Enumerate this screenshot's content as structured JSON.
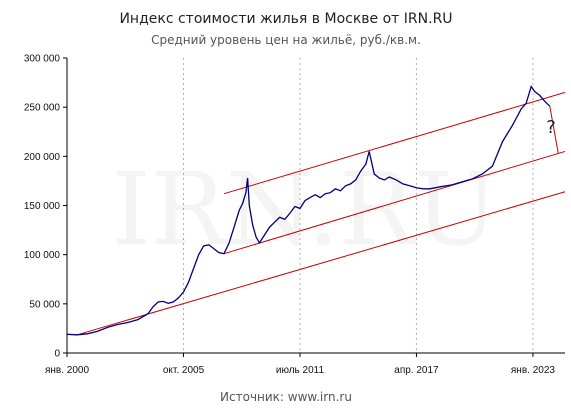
{
  "chart_data": {
    "type": "line",
    "title": "Индекс стоимости жилья в Москве от IRN.RU",
    "subtitle": "Средний уровень цен на жильё, руб./кв.м.",
    "source": "Источник: www.irn.ru",
    "watermark": "IRN.RU",
    "annotation": "?",
    "xlim": [
      "2000-01",
      "2024-08"
    ],
    "ylim": [
      0,
      300000
    ],
    "yticks": [
      0,
      50000,
      100000,
      150000,
      200000,
      250000,
      300000
    ],
    "ytick_labels": [
      "0",
      "50 000",
      "100 000",
      "150 000",
      "200 000",
      "250 000",
      "300 000"
    ],
    "xticks": [
      "2000-01",
      "2005-10",
      "2011-07",
      "2017-04",
      "2023-01"
    ],
    "xtick_labels": [
      "янв. 2000",
      "окт. 2005",
      "июль 2011",
      "апр. 2017",
      "янв. 2023"
    ],
    "grid": {
      "vertical": true,
      "horizontal": false,
      "style": "dashed"
    },
    "colors": {
      "series": "#000080",
      "channel": "#cc0000"
    },
    "series": [
      {
        "color": "#000080",
        "points": [
          [
            "2000-01",
            19000
          ],
          [
            "2000-07",
            18500
          ],
          [
            "2001-01",
            19500
          ],
          [
            "2001-07",
            22000
          ],
          [
            "2002-01",
            26000
          ],
          [
            "2002-07",
            29000
          ],
          [
            "2003-01",
            31000
          ],
          [
            "2003-07",
            34000
          ],
          [
            "2004-01",
            40000
          ],
          [
            "2004-04",
            47000
          ],
          [
            "2004-07",
            52000
          ],
          [
            "2004-10",
            52500
          ],
          [
            "2005-01",
            50500
          ],
          [
            "2005-04",
            52000
          ],
          [
            "2005-07",
            56000
          ],
          [
            "2005-10",
            62000
          ],
          [
            "2006-01",
            72000
          ],
          [
            "2006-04",
            86000
          ],
          [
            "2006-07",
            100000
          ],
          [
            "2006-10",
            109000
          ],
          [
            "2007-01",
            110000
          ],
          [
            "2007-04",
            106000
          ],
          [
            "2007-07",
            102000
          ],
          [
            "2007-10",
            101000
          ],
          [
            "2008-01",
            112000
          ],
          [
            "2008-04",
            128000
          ],
          [
            "2008-07",
            145000
          ],
          [
            "2008-09",
            152000
          ],
          [
            "2008-11",
            163000
          ],
          [
            "2008-12",
            178000
          ],
          [
            "2009-01",
            150000
          ],
          [
            "2009-03",
            130000
          ],
          [
            "2009-05",
            118000
          ],
          [
            "2009-07",
            112000
          ],
          [
            "2009-10",
            120000
          ],
          [
            "2010-01",
            128000
          ],
          [
            "2010-04",
            133000
          ],
          [
            "2010-07",
            138000
          ],
          [
            "2010-10",
            136000
          ],
          [
            "2011-01",
            142000
          ],
          [
            "2011-04",
            149000
          ],
          [
            "2011-07",
            147000
          ],
          [
            "2011-10",
            155000
          ],
          [
            "2012-01",
            158000
          ],
          [
            "2012-04",
            161000
          ],
          [
            "2012-07",
            158000
          ],
          [
            "2012-10",
            162000
          ],
          [
            "2013-01",
            163000
          ],
          [
            "2013-04",
            167000
          ],
          [
            "2013-07",
            165000
          ],
          [
            "2013-10",
            170000
          ],
          [
            "2014-01",
            172000
          ],
          [
            "2014-04",
            176000
          ],
          [
            "2014-07",
            185000
          ],
          [
            "2014-10",
            192000
          ],
          [
            "2014-12",
            205000
          ],
          [
            "2015-03",
            182000
          ],
          [
            "2015-06",
            178000
          ],
          [
            "2015-09",
            176000
          ],
          [
            "2015-12",
            179000
          ],
          [
            "2016-04",
            176000
          ],
          [
            "2016-08",
            172000
          ],
          [
            "2016-12",
            170000
          ],
          [
            "2017-04",
            168000
          ],
          [
            "2017-08",
            167000
          ],
          [
            "2017-12",
            167000
          ],
          [
            "2018-06",
            169000
          ],
          [
            "2019-01",
            171000
          ],
          [
            "2019-07",
            174000
          ],
          [
            "2020-01",
            177000
          ],
          [
            "2020-07",
            182000
          ],
          [
            "2021-01",
            190000
          ],
          [
            "2021-07",
            215000
          ],
          [
            "2022-01",
            232000
          ],
          [
            "2022-06",
            248000
          ],
          [
            "2022-09",
            254000
          ],
          [
            "2022-12",
            271000
          ],
          [
            "2023-02",
            266000
          ],
          [
            "2023-05",
            262000
          ],
          [
            "2023-08",
            256000
          ],
          [
            "2023-11",
            251000
          ]
        ]
      }
    ],
    "channel_lines": [
      {
        "from": [
          "2000-06",
          18000
        ],
        "to": [
          "2024-08",
          164000
        ]
      },
      {
        "from": [
          "2007-10",
          101000
        ],
        "to": [
          "2024-08",
          205000
        ]
      },
      {
        "from": [
          "2007-10",
          162000
        ],
        "to": [
          "2024-08",
          265000
        ]
      },
      {
        "from": [
          "2023-11",
          251000
        ],
        "to": [
          "2024-04",
          203000
        ]
      }
    ]
  }
}
